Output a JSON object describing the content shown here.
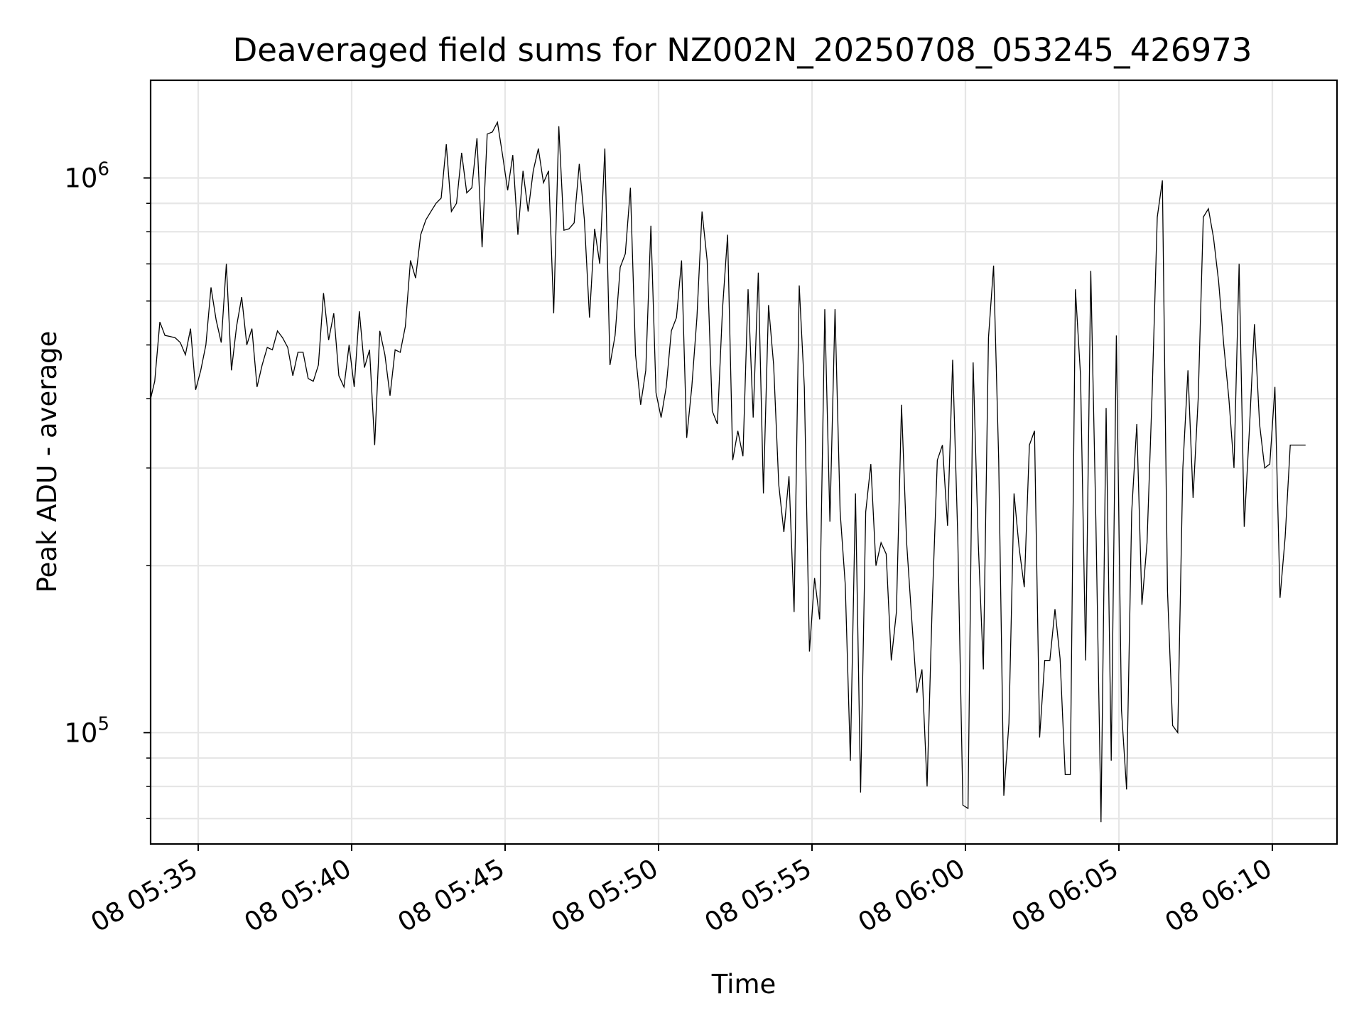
{
  "chart_data": {
    "type": "line",
    "title": "Deaveraged field sums for NZ002N_20250708_053245_426973",
    "xlabel": "Time",
    "ylabel": "Peak ADU - average",
    "y_scale": "log",
    "ylim": [
      63000,
      1500000
    ],
    "grid": true,
    "line_color": "#000000",
    "x_ticks": [
      "08 05:35",
      "08 05:40",
      "08 05:45",
      "08 05:50",
      "08 05:55",
      "08 06:00",
      "08 06:05",
      "08 06:10"
    ],
    "y_ticks": [
      {
        "base": "10",
        "exp": "5",
        "value": 100000
      },
      {
        "base": "10",
        "exp": "6",
        "value": 1000000
      }
    ],
    "series": [
      {
        "x_start": "08 05:33:25",
        "x_step_seconds": 10,
        "values": [
          400000,
          430000,
          550000,
          520000,
          518000,
          515000,
          505000,
          480000,
          535000,
          415000,
          450000,
          500000,
          635000,
          555000,
          505000,
          700000,
          450000,
          540000,
          610000,
          500000,
          535000,
          420000,
          460000,
          495000,
          490000,
          530000,
          515000,
          495000,
          440000,
          485000,
          485000,
          435000,
          430000,
          460000,
          620000,
          510000,
          570000,
          440000,
          420000,
          500000,
          420000,
          575000,
          455000,
          490000,
          330000,
          530000,
          480000,
          405000,
          490000,
          485000,
          540000,
          710000,
          660000,
          790000,
          840000,
          870000,
          900000,
          920000,
          1150000,
          870000,
          900000,
          1110000,
          940000,
          960000,
          1180000,
          750000,
          1200000,
          1210000,
          1260000,
          1100000,
          950000,
          1100000,
          790000,
          1030000,
          870000,
          1030000,
          1130000,
          980000,
          1030000,
          570000,
          1240000,
          805000,
          810000,
          830000,
          1060000,
          840000,
          560000,
          810000,
          700000,
          1130000,
          460000,
          520000,
          690000,
          730000,
          960000,
          480000,
          390000,
          450000,
          820000,
          410000,
          370000,
          420000,
          530000,
          560000,
          710000,
          340000,
          420000,
          560000,
          870000,
          710000,
          380000,
          360000,
          580000,
          790000,
          310000,
          350000,
          315000,
          630000,
          370000,
          675000,
          270000,
          590000,
          460000,
          280000,
          230000,
          290000,
          165000,
          640000,
          420000,
          140000,
          190000,
          160000,
          580000,
          240000,
          580000,
          250000,
          185000,
          89000,
          270000,
          78000,
          250000,
          305000,
          200000,
          220000,
          210000,
          135000,
          165000,
          390000,
          220000,
          160000,
          118000,
          130000,
          80000,
          170000,
          310000,
          330000,
          236000,
          470000,
          225000,
          74000,
          73000,
          465000,
          220000,
          130000,
          515000,
          695000,
          310000,
          77000,
          104000,
          270000,
          215000,
          183000,
          330000,
          350000,
          98000,
          135000,
          135000,
          167000,
          136000,
          84000,
          84000,
          630000,
          440000,
          135000,
          680000,
          240000,
          69000,
          385000,
          89000,
          520000,
          110000,
          79000,
          250000,
          360000,
          170000,
          220000,
          410000,
          850000,
          990000,
          180000,
          103000,
          100000,
          300000,
          450000,
          265000,
          400000,
          850000,
          880000,
          780000,
          650000,
          500000,
          400000,
          300000,
          700000,
          235000,
          350000,
          545000,
          360000,
          300000,
          305000,
          420000,
          175000,
          225000,
          330000,
          330000,
          330000,
          330000
        ]
      }
    ]
  }
}
